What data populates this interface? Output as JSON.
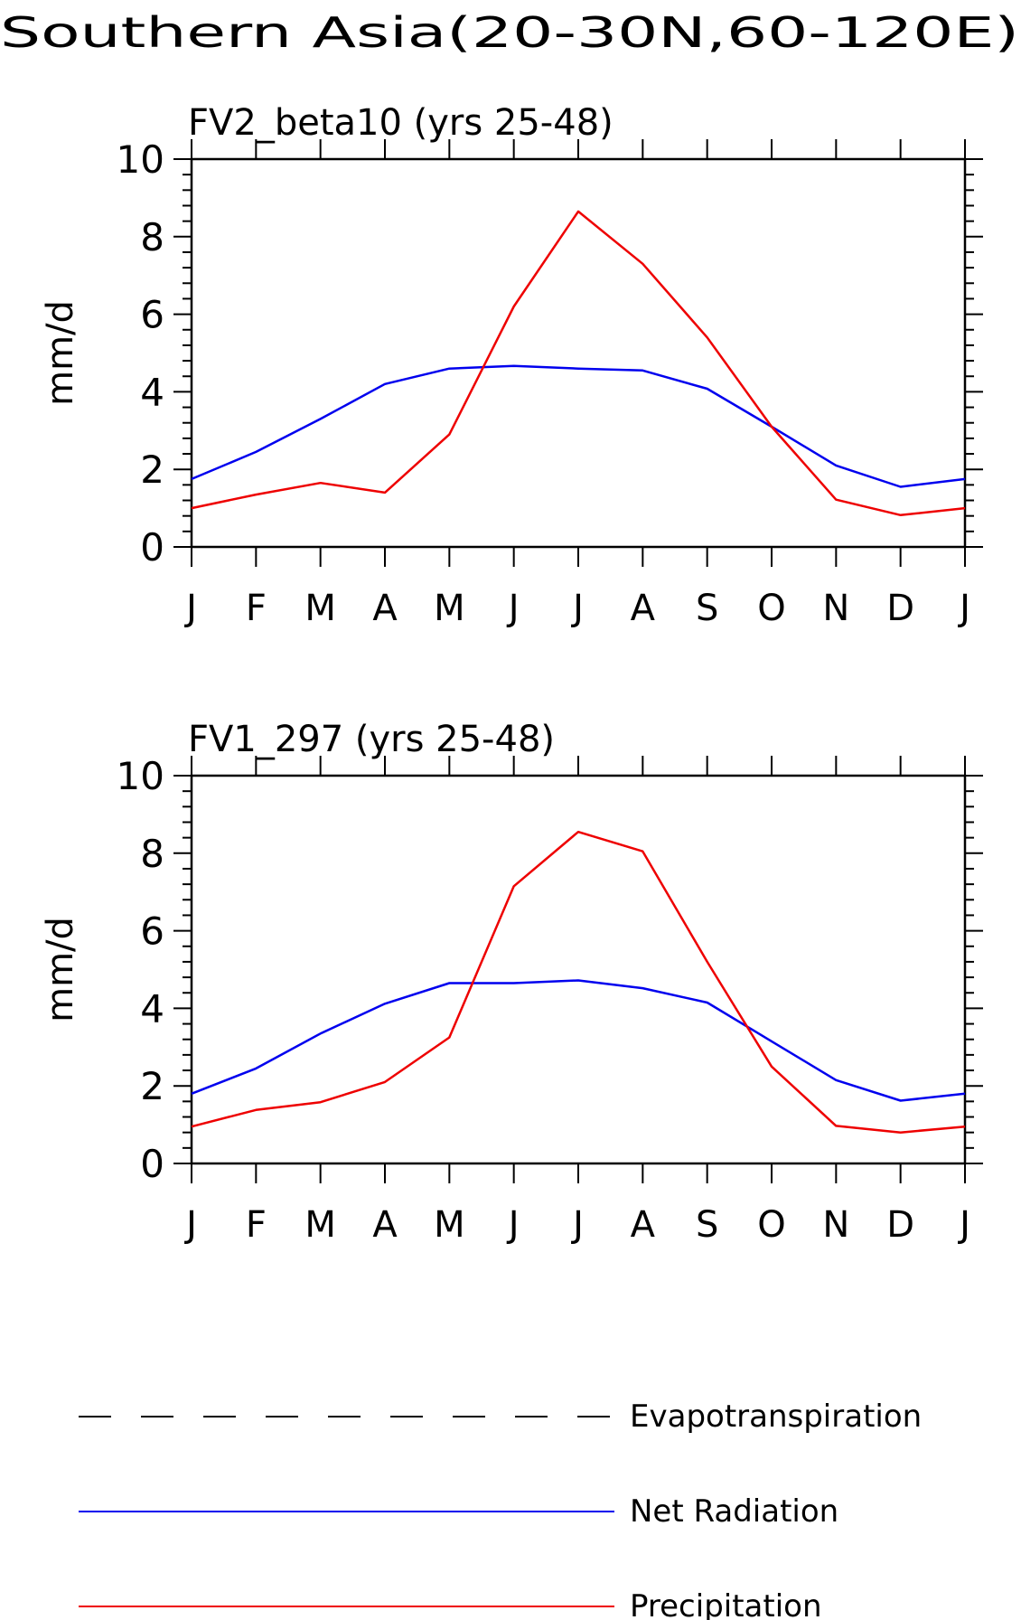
{
  "figure": {
    "title": "Southern Asia(20-30N,60-120E)"
  },
  "colors": {
    "net_radiation": "#0000ee",
    "precipitation": "#ee0000",
    "evapotranspiration": "#000000",
    "axis": "#000000"
  },
  "legend": {
    "items": [
      {
        "key": "evapotranspiration",
        "label": "Evapotranspiration",
        "style": "dashed"
      },
      {
        "key": "net_radiation",
        "label": "Net Radiation",
        "style": "solid"
      },
      {
        "key": "precipitation",
        "label": "Precipitation",
        "style": "solid"
      }
    ]
  },
  "chart_data": [
    {
      "type": "line",
      "title": "FV2_beta10 (yrs 25-48)",
      "xlabel": "",
      "ylabel": "mm/d",
      "categories": [
        "J",
        "F",
        "M",
        "A",
        "M",
        "J",
        "J",
        "A",
        "S",
        "O",
        "N",
        "D",
        "J"
      ],
      "ylim": [
        0,
        10
      ],
      "yticks": [
        0,
        2,
        4,
        6,
        8,
        10
      ],
      "series": [
        {
          "name": "Net Radiation",
          "key": "net_radiation",
          "values": [
            1.75,
            2.45,
            3.3,
            4.2,
            4.6,
            4.67,
            4.6,
            4.55,
            4.08,
            3.1,
            2.1,
            1.55,
            1.75
          ]
        },
        {
          "name": "Precipitation",
          "key": "precipitation",
          "values": [
            1.0,
            1.35,
            1.65,
            1.4,
            2.9,
            6.2,
            8.65,
            7.3,
            5.4,
            3.1,
            1.22,
            0.82,
            1.0
          ]
        }
      ]
    },
    {
      "type": "line",
      "title": "FV1_297 (yrs 25-48)",
      "xlabel": "",
      "ylabel": "mm/d",
      "categories": [
        "J",
        "F",
        "M",
        "A",
        "M",
        "J",
        "J",
        "A",
        "S",
        "O",
        "N",
        "D",
        "J"
      ],
      "ylim": [
        0,
        10
      ],
      "yticks": [
        0,
        2,
        4,
        6,
        8,
        10
      ],
      "series": [
        {
          "name": "Net Radiation",
          "key": "net_radiation",
          "values": [
            1.8,
            2.45,
            3.35,
            4.12,
            4.65,
            4.65,
            4.72,
            4.52,
            4.15,
            3.15,
            2.15,
            1.62,
            1.8
          ]
        },
        {
          "name": "Precipitation",
          "key": "precipitation",
          "values": [
            0.95,
            1.38,
            1.58,
            2.1,
            3.25,
            7.15,
            8.55,
            8.05,
            5.2,
            2.5,
            0.97,
            0.8,
            0.95
          ]
        }
      ]
    }
  ]
}
